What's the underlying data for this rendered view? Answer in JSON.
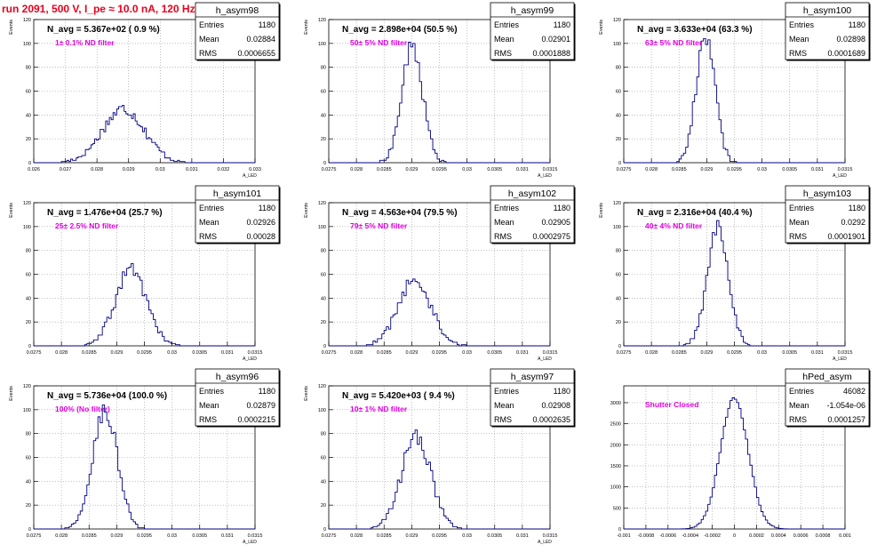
{
  "page_title": "run 2091,   500 V, I_pe ≈ 10.0 nA, 120 Hz",
  "colors": {
    "title": "#e8001c",
    "annotation": "#e000e0",
    "histogram": "#000080",
    "grid": "#9a9a9a"
  },
  "chart_data": [
    {
      "type": "histogram",
      "hist_name": "h_asym98",
      "navg": "N_avg = 5.367e+02 ( 0.9 %)",
      "filter_label": "1± 0.1% ND filter",
      "ylabel": "Events",
      "xlabel": "A_LED",
      "stats": [
        [
          "Entries",
          "1180"
        ],
        [
          "Mean",
          "0.02884"
        ],
        [
          "RMS",
          "0.0006655"
        ]
      ],
      "xlim": [
        0.026,
        0.033
      ],
      "ylim": [
        0,
        120
      ],
      "xticks": [
        0.026,
        0.027,
        0.028,
        0.029,
        0.03,
        0.031,
        0.032,
        0.033
      ],
      "xtick_labels": [
        "0.026",
        "0.027",
        "0.028",
        "0.029",
        "0.03",
        "0.031",
        "0.032",
        "0.033"
      ],
      "yticks": [
        0,
        20,
        40,
        60,
        80,
        100,
        120
      ],
      "ytick_labels": [
        "0",
        "20",
        "40",
        "60",
        "80",
        "100",
        "120"
      ],
      "mean": 0.02884,
      "rms": 0.0006655,
      "peak": 45,
      "bins": 120
    },
    {
      "type": "histogram",
      "hist_name": "h_asym99",
      "navg": "N_avg = 2.898e+04 (50.5 %)",
      "filter_label": "50± 5% ND filter",
      "ylabel": "Events",
      "xlabel": "A_LED",
      "stats": [
        [
          "Entries",
          "1180"
        ],
        [
          "Mean",
          "0.02901"
        ],
        [
          "RMS",
          "0.0001888"
        ]
      ],
      "xlim": [
        0.0275,
        0.0315
      ],
      "ylim": [
        0,
        120
      ],
      "xticks": [
        0.0275,
        0.028,
        0.0285,
        0.029,
        0.0295,
        0.03,
        0.0305,
        0.031,
        0.0315
      ],
      "xtick_labels": [
        "0.0275",
        "0.028",
        "0.0285",
        "0.029",
        "0.0295",
        "0.03",
        "0.0305",
        "0.031",
        "0.0315"
      ],
      "yticks": [
        0,
        20,
        40,
        60,
        80,
        100,
        120
      ],
      "ytick_labels": [
        "0",
        "20",
        "40",
        "60",
        "80",
        "100",
        "120"
      ],
      "mean": 0.02901,
      "rms": 0.0001888,
      "peak": 97,
      "bins": 100
    },
    {
      "type": "histogram",
      "hist_name": "h_asym100",
      "navg": "N_avg = 3.633e+04 (63.3 %)",
      "filter_label": "63± 5% ND filter",
      "ylabel": "Events",
      "xlabel": "A_LED",
      "stats": [
        [
          "Entries",
          "1180"
        ],
        [
          "Mean",
          "0.02898"
        ],
        [
          "RMS",
          "0.0001689"
        ]
      ],
      "xlim": [
        0.0275,
        0.0315
      ],
      "ylim": [
        0,
        120
      ],
      "xticks": [
        0.0275,
        0.028,
        0.0285,
        0.029,
        0.0295,
        0.03,
        0.0305,
        0.031,
        0.0315
      ],
      "xtick_labels": [
        "0.0275",
        "0.028",
        "0.0285",
        "0.029",
        "0.0295",
        "0.03",
        "0.0305",
        "0.031",
        "0.0315"
      ],
      "yticks": [
        0,
        20,
        40,
        60,
        80,
        100,
        120
      ],
      "ytick_labels": [
        "0",
        "20",
        "40",
        "60",
        "80",
        "100",
        "120"
      ],
      "mean": 0.02898,
      "rms": 0.0001689,
      "peak": 108,
      "bins": 100
    },
    {
      "type": "histogram",
      "hist_name": "h_asym101",
      "navg": "N_avg = 1.476e+04 (25.7 %)",
      "filter_label": "25± 2.5% ND filter",
      "ylabel": "Events",
      "xlabel": "A_LED",
      "stats": [
        [
          "Entries",
          "1180"
        ],
        [
          "Mean",
          "0.02926"
        ],
        [
          "RMS",
          "0.00028"
        ]
      ],
      "xlim": [
        0.0275,
        0.0315
      ],
      "ylim": [
        0,
        120
      ],
      "xticks": [
        0.0275,
        0.028,
        0.0285,
        0.029,
        0.0295,
        0.03,
        0.0305,
        0.031,
        0.0315
      ],
      "xtick_labels": [
        "0.0275",
        "0.028",
        "0.0285",
        "0.029",
        "0.0295",
        "0.03",
        "0.0305",
        "0.031",
        "0.0315"
      ],
      "yticks": [
        0,
        20,
        40,
        60,
        80,
        100,
        120
      ],
      "ytick_labels": [
        "0",
        "20",
        "40",
        "60",
        "80",
        "100",
        "120"
      ],
      "mean": 0.02926,
      "rms": 0.00028,
      "peak": 64,
      "bins": 100
    },
    {
      "type": "histogram",
      "hist_name": "h_asym102",
      "navg": "N_avg = 4.563e+04 (79.5 %)",
      "filter_label": "79± 5% ND filter",
      "ylabel": "Events",
      "xlabel": "A_LED",
      "stats": [
        [
          "Entries",
          "1180"
        ],
        [
          "Mean",
          "0.02905"
        ],
        [
          "RMS",
          "0.0002975"
        ]
      ],
      "xlim": [
        0.0275,
        0.0315
      ],
      "ylim": [
        0,
        120
      ],
      "xticks": [
        0.0275,
        0.028,
        0.0285,
        0.029,
        0.0295,
        0.03,
        0.0305,
        0.031,
        0.0315
      ],
      "xtick_labels": [
        "0.0275",
        "0.028",
        "0.0285",
        "0.029",
        "0.0295",
        "0.03",
        "0.0305",
        "0.031",
        "0.0315"
      ],
      "yticks": [
        0,
        20,
        40,
        60,
        80,
        100,
        120
      ],
      "ytick_labels": [
        "0",
        "20",
        "40",
        "60",
        "80",
        "100",
        "120"
      ],
      "mean": 0.02905,
      "rms": 0.0002975,
      "peak": 55,
      "bins": 100
    },
    {
      "type": "histogram",
      "hist_name": "h_asym103",
      "navg": "N_avg = 2.316e+04 (40.4 %)",
      "filter_label": "40± 4% ND filter",
      "ylabel": "Events",
      "xlabel": "A_LED",
      "stats": [
        [
          "Entries",
          "1180"
        ],
        [
          "Mean",
          "0.0292"
        ],
        [
          "RMS",
          "0.0001901"
        ]
      ],
      "xlim": [
        0.0275,
        0.0315
      ],
      "ylim": [
        0,
        120
      ],
      "xticks": [
        0.0275,
        0.028,
        0.0285,
        0.029,
        0.0295,
        0.03,
        0.0305,
        0.031,
        0.0315
      ],
      "xtick_labels": [
        "0.0275",
        "0.028",
        "0.0285",
        "0.029",
        "0.0295",
        "0.03",
        "0.0305",
        "0.031",
        "0.0315"
      ],
      "yticks": [
        0,
        20,
        40,
        60,
        80,
        100,
        120
      ],
      "ytick_labels": [
        "0",
        "20",
        "40",
        "60",
        "80",
        "100",
        "120"
      ],
      "mean": 0.0292,
      "rms": 0.0001901,
      "peak": 100,
      "bins": 100
    },
    {
      "type": "histogram",
      "hist_name": "h_asym96",
      "navg": "N_avg = 5.736e+04 (100.0 %)",
      "filter_label": "100% (No filter)",
      "ylabel": "Events",
      "xlabel": "A_LED",
      "stats": [
        [
          "Entries",
          "1180"
        ],
        [
          "Mean",
          "0.02879"
        ],
        [
          "RMS",
          "0.0002215"
        ]
      ],
      "xlim": [
        0.0275,
        0.0315
      ],
      "ylim": [
        0,
        120
      ],
      "xticks": [
        0.0275,
        0.028,
        0.0285,
        0.029,
        0.0295,
        0.03,
        0.0305,
        0.031,
        0.0315
      ],
      "xtick_labels": [
        "0.0275",
        "0.028",
        "0.0285",
        "0.029",
        "0.0295",
        "0.03",
        "0.0305",
        "0.031",
        "0.0315"
      ],
      "yticks": [
        0,
        20,
        40,
        60,
        80,
        100,
        120
      ],
      "ytick_labels": [
        "0",
        "20",
        "40",
        "60",
        "80",
        "100",
        "120"
      ],
      "mean": 0.02879,
      "rms": 0.0002215,
      "peak": 100,
      "bins": 100
    },
    {
      "type": "histogram",
      "hist_name": "h_asym97",
      "navg": "N_avg = 5.420e+03 ( 9.4 %)",
      "filter_label": "10± 1% ND filter",
      "ylabel": "Events",
      "xlabel": "A_LED",
      "stats": [
        [
          "Entries",
          "1180"
        ],
        [
          "Mean",
          "0.02908"
        ],
        [
          "RMS",
          "0.0002635"
        ]
      ],
      "xlim": [
        0.0275,
        0.0315
      ],
      "ylim": [
        0,
        120
      ],
      "xticks": [
        0.0275,
        0.028,
        0.0285,
        0.029,
        0.0295,
        0.03,
        0.0305,
        0.031,
        0.0315
      ],
      "xtick_labels": [
        "0.0275",
        "0.028",
        "0.0285",
        "0.029",
        "0.0295",
        "0.03",
        "0.0305",
        "0.031",
        "0.0315"
      ],
      "yticks": [
        0,
        20,
        40,
        60,
        80,
        100,
        120
      ],
      "ytick_labels": [
        "0",
        "20",
        "40",
        "60",
        "80",
        "100",
        "120"
      ],
      "mean": 0.02908,
      "rms": 0.0002635,
      "peak": 78,
      "bins": 100
    },
    {
      "type": "histogram",
      "hist_name": "hPed_asym",
      "navg": "",
      "filter_label": "Shutter Closed",
      "ylabel": "",
      "xlabel": "",
      "stats": [
        [
          "Entries",
          "46082"
        ],
        [
          "Mean",
          "-1.054e-06"
        ],
        [
          "RMS",
          "0.0001257"
        ]
      ],
      "xlim": [
        -0.001,
        0.001
      ],
      "ylim": [
        0,
        3400
      ],
      "xticks": [
        -0.001,
        -0.0008,
        -0.0006,
        -0.0004,
        -0.0002,
        0,
        0.0002,
        0.0004,
        0.0006,
        0.0008,
        0.001
      ],
      "xtick_labels": [
        "-0.001",
        "-0.0008",
        "-0.0006",
        "-0.0004",
        "-0.0002",
        "0",
        "0.0002",
        "0.0004",
        "0.0006",
        "0.0008",
        "0.001"
      ],
      "yticks": [
        0,
        500,
        1000,
        1500,
        2000,
        2500,
        3000
      ],
      "ytick_labels": [
        "0",
        "500",
        "1000",
        "1500",
        "2000",
        "2500",
        "3000"
      ],
      "mean": -1.054e-06,
      "rms": 0.0001257,
      "peak": 3100,
      "bins": 100
    }
  ]
}
